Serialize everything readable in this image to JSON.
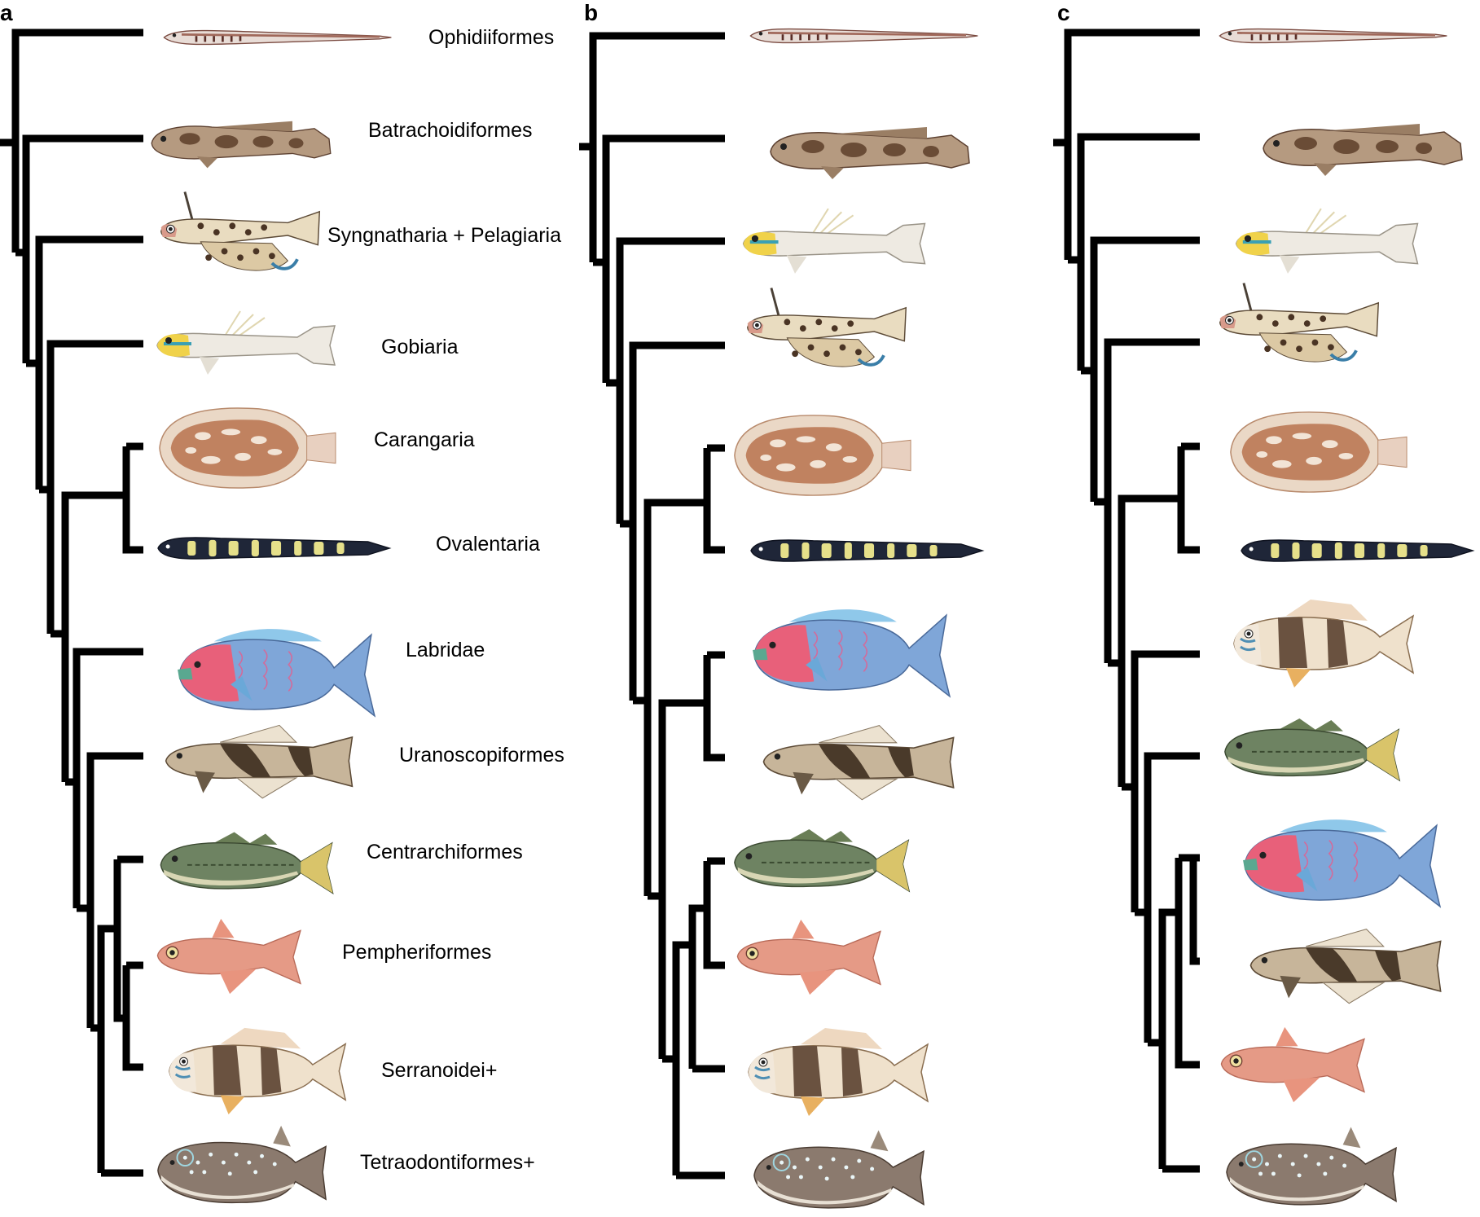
{
  "figure": {
    "panels": [
      {
        "letter": "a",
        "labels": [
          "Ophidiiformes",
          "Batrachoidiformes",
          "Syngnatharia + Pelagiaria",
          "Gobiaria",
          "Carangaria",
          "Ovalentaria",
          "Labridae",
          "Uranoscopiformes",
          "Centrarchiformes",
          "Pempheriformes",
          "Serranoidei+",
          "Tetraodontiformes+"
        ],
        "fish_order": [
          "cusk-eel",
          "toadfish",
          "dragonet",
          "goby",
          "flatfish",
          "eel-blenny",
          "parrotfish",
          "stargazer",
          "bass",
          "sweeper",
          "perch",
          "puffer"
        ]
      },
      {
        "letter": "b",
        "labels": [],
        "fish_order": [
          "cusk-eel",
          "toadfish",
          "goby",
          "dragonet",
          "flatfish",
          "eel-blenny",
          "parrotfish",
          "stargazer",
          "bass",
          "sweeper",
          "perch",
          "puffer"
        ]
      },
      {
        "letter": "c",
        "labels": [],
        "fish_order": [
          "cusk-eel",
          "toadfish",
          "goby",
          "dragonet",
          "flatfish",
          "eel-blenny",
          "perch",
          "bass",
          "parrotfish",
          "stargazer",
          "sweeper",
          "puffer"
        ]
      }
    ],
    "fish_palette": {
      "cusk-eel": "#a0685a",
      "toadfish": "#8a6a4e",
      "dragonet": "#c9a57d",
      "goby": "#e7e3da",
      "flatfish": "#d49d7a",
      "eel-blenny": "#222a3a",
      "parrotfish": "#7fa6d8",
      "stargazer": "#8b7256",
      "bass": "#6b8060",
      "sweeper": "#e59a86",
      "perch": "#ead8bd",
      "puffer": "#8b7a6e"
    }
  }
}
